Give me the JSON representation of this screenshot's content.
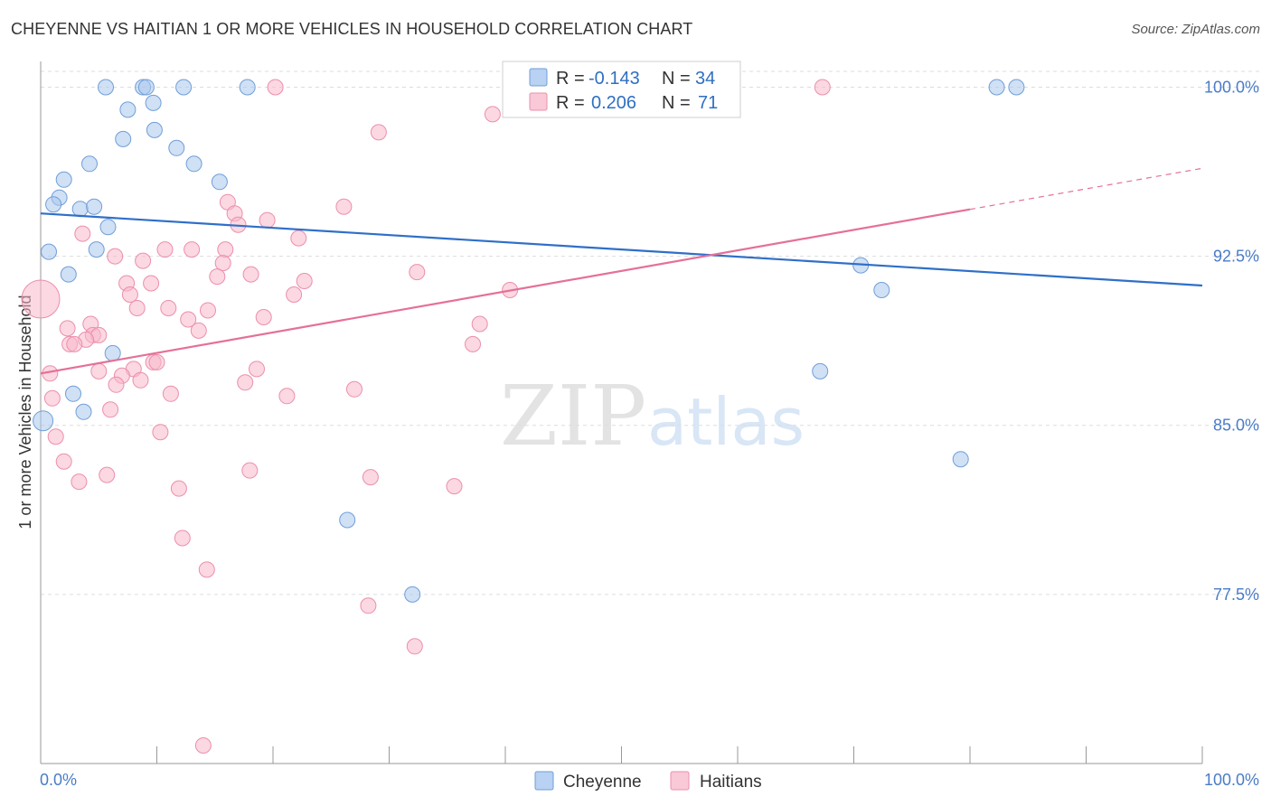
{
  "chart_data": {
    "type": "scatter",
    "title": "CHEYENNE VS HAITIAN 1 OR MORE VEHICLES IN HOUSEHOLD CORRELATION CHART",
    "source": "Source: ZipAtlas.com",
    "xlabel": "",
    "ylabel": "1 or more Vehicles in Household",
    "xlim": [
      0,
      100
    ],
    "ylim": [
      70,
      100.7
    ],
    "x_tick_labels": [
      "0.0%",
      "100.0%"
    ],
    "y_ticks": [
      {
        "value": 100.0,
        "label": "100.0%"
      },
      {
        "value": 92.5,
        "label": "92.5%"
      },
      {
        "value": 85.0,
        "label": "85.0%"
      },
      {
        "value": 77.5,
        "label": "77.5%"
      }
    ],
    "watermark": {
      "part1": "ZIP",
      "part2": "atlas"
    },
    "legend": {
      "r_label": "R =",
      "n_label": "N =",
      "rows": [
        {
          "r": "-0.143",
          "n": "34"
        },
        {
          "r": "0.206",
          "n": "71"
        }
      ]
    },
    "series": [
      {
        "name": "Cheyenne",
        "color": "#a9c6ec",
        "stroke": "#6f9fd8",
        "line_color": "#2f6fc8",
        "trend": {
          "x0": 0,
          "y0": 94.4,
          "x1": 100,
          "y1": 91.2,
          "dash_from": null
        },
        "points": [
          {
            "x": 5.6,
            "y": 100.0
          },
          {
            "x": 8.8,
            "y": 100.0
          },
          {
            "x": 9.1,
            "y": 100.0
          },
          {
            "x": 12.3,
            "y": 100.0
          },
          {
            "x": 17.8,
            "y": 100.0
          },
          {
            "x": 82.3,
            "y": 100.0
          },
          {
            "x": 84.0,
            "y": 100.0
          },
          {
            "x": 7.5,
            "y": 99.0
          },
          {
            "x": 9.7,
            "y": 99.3
          },
          {
            "x": 9.8,
            "y": 98.1
          },
          {
            "x": 7.1,
            "y": 97.7
          },
          {
            "x": 11.7,
            "y": 97.3
          },
          {
            "x": 4.2,
            "y": 96.6
          },
          {
            "x": 13.2,
            "y": 96.6
          },
          {
            "x": 2.0,
            "y": 95.9
          },
          {
            "x": 15.4,
            "y": 95.8
          },
          {
            "x": 1.6,
            "y": 95.1
          },
          {
            "x": 1.1,
            "y": 94.8
          },
          {
            "x": 3.4,
            "y": 94.6
          },
          {
            "x": 4.6,
            "y": 94.7
          },
          {
            "x": 5.8,
            "y": 93.8
          },
          {
            "x": 0.7,
            "y": 92.7
          },
          {
            "x": 4.8,
            "y": 92.8
          },
          {
            "x": 2.4,
            "y": 91.7
          },
          {
            "x": 70.6,
            "y": 92.1
          },
          {
            "x": 72.4,
            "y": 91.0
          },
          {
            "x": 6.2,
            "y": 88.2
          },
          {
            "x": 67.1,
            "y": 87.4
          },
          {
            "x": 2.8,
            "y": 86.4
          },
          {
            "x": 3.7,
            "y": 85.6
          },
          {
            "x": 0.2,
            "y": 85.2
          },
          {
            "x": 79.2,
            "y": 83.5
          },
          {
            "x": 26.4,
            "y": 80.8
          },
          {
            "x": 32.0,
            "y": 77.5
          }
        ]
      },
      {
        "name": "Haitians",
        "color": "#f7b8ca",
        "stroke": "#ec8fab",
        "line_color": "#e57098",
        "trend": {
          "x0": 0,
          "y0": 87.3,
          "x1": 100,
          "y1": 96.4,
          "dash_from": 80
        },
        "points": [
          {
            "x": 20.2,
            "y": 100.0
          },
          {
            "x": 67.3,
            "y": 100.0
          },
          {
            "x": 38.9,
            "y": 98.8
          },
          {
            "x": 29.1,
            "y": 98.0
          },
          {
            "x": 16.1,
            "y": 94.9
          },
          {
            "x": 26.1,
            "y": 94.7
          },
          {
            "x": 16.7,
            "y": 94.4
          },
          {
            "x": 17.0,
            "y": 93.9
          },
          {
            "x": 19.5,
            "y": 94.1
          },
          {
            "x": 3.6,
            "y": 93.5
          },
          {
            "x": 22.2,
            "y": 93.3
          },
          {
            "x": 10.7,
            "y": 92.8
          },
          {
            "x": 13.0,
            "y": 92.8
          },
          {
            "x": 15.9,
            "y": 92.8
          },
          {
            "x": 6.4,
            "y": 92.5
          },
          {
            "x": 8.8,
            "y": 92.3
          },
          {
            "x": 15.7,
            "y": 92.2
          },
          {
            "x": 32.4,
            "y": 91.8
          },
          {
            "x": 18.1,
            "y": 91.7
          },
          {
            "x": 15.2,
            "y": 91.6
          },
          {
            "x": 22.7,
            "y": 91.4
          },
          {
            "x": 7.4,
            "y": 91.3
          },
          {
            "x": 9.5,
            "y": 91.3
          },
          {
            "x": 21.8,
            "y": 90.8
          },
          {
            "x": 40.4,
            "y": 91.0
          },
          {
            "x": 7.7,
            "y": 90.8
          },
          {
            "x": 0.0,
            "y": 90.6
          },
          {
            "x": 8.3,
            "y": 90.2
          },
          {
            "x": 11.0,
            "y": 90.2
          },
          {
            "x": 14.4,
            "y": 90.1
          },
          {
            "x": 19.2,
            "y": 89.8
          },
          {
            "x": 12.7,
            "y": 89.7
          },
          {
            "x": 4.3,
            "y": 89.5
          },
          {
            "x": 37.8,
            "y": 89.5
          },
          {
            "x": 2.3,
            "y": 89.3
          },
          {
            "x": 13.6,
            "y": 89.2
          },
          {
            "x": 4.5,
            "y": 89.0
          },
          {
            "x": 5.0,
            "y": 89.0
          },
          {
            "x": 3.9,
            "y": 88.8
          },
          {
            "x": 2.5,
            "y": 88.6
          },
          {
            "x": 2.9,
            "y": 88.6
          },
          {
            "x": 37.2,
            "y": 88.6
          },
          {
            "x": 9.7,
            "y": 87.8
          },
          {
            "x": 10.0,
            "y": 87.8
          },
          {
            "x": 8.0,
            "y": 87.5
          },
          {
            "x": 18.6,
            "y": 87.5
          },
          {
            "x": 0.8,
            "y": 87.3
          },
          {
            "x": 5.0,
            "y": 87.4
          },
          {
            "x": 7.0,
            "y": 87.2
          },
          {
            "x": 8.6,
            "y": 87.0
          },
          {
            "x": 17.6,
            "y": 86.9
          },
          {
            "x": 6.5,
            "y": 86.8
          },
          {
            "x": 27.0,
            "y": 86.6
          },
          {
            "x": 11.2,
            "y": 86.4
          },
          {
            "x": 21.2,
            "y": 86.3
          },
          {
            "x": 1.0,
            "y": 86.2
          },
          {
            "x": 6.0,
            "y": 85.7
          },
          {
            "x": 10.3,
            "y": 84.7
          },
          {
            "x": 1.3,
            "y": 84.5
          },
          {
            "x": 2.0,
            "y": 83.4
          },
          {
            "x": 18.0,
            "y": 83.0
          },
          {
            "x": 5.7,
            "y": 82.8
          },
          {
            "x": 28.4,
            "y": 82.7
          },
          {
            "x": 3.3,
            "y": 82.5
          },
          {
            "x": 11.9,
            "y": 82.2
          },
          {
            "x": 35.6,
            "y": 82.3
          },
          {
            "x": 12.2,
            "y": 80.0
          },
          {
            "x": 14.3,
            "y": 78.6
          },
          {
            "x": 28.2,
            "y": 77.0
          },
          {
            "x": 32.2,
            "y": 75.2
          },
          {
            "x": 14.0,
            "y": 70.8
          }
        ]
      }
    ]
  }
}
